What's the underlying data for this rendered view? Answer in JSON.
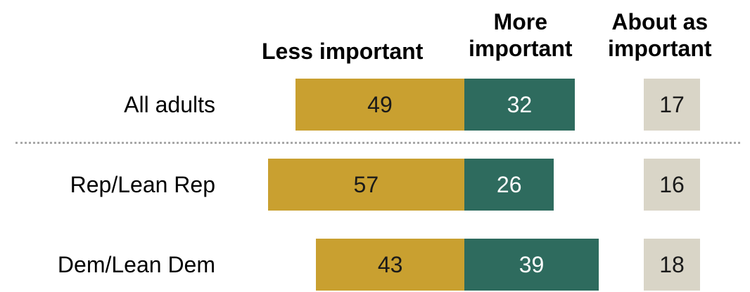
{
  "chart_data": {
    "type": "bar",
    "stacked": "diverging",
    "headers": {
      "less": "Less important",
      "more_line1": "More",
      "more_line2": "important",
      "about_line1": "About as",
      "about_line2": "important"
    },
    "categories": [
      "All adults",
      "Rep/Lean Rep",
      "Dem/Lean Dem"
    ],
    "series": [
      {
        "name": "Less important",
        "values": [
          49,
          57,
          43
        ],
        "color": "#c9a030"
      },
      {
        "name": "More important",
        "values": [
          32,
          26,
          39
        ],
        "color": "#2e6b5e"
      },
      {
        "name": "About as important",
        "values": [
          17,
          16,
          18
        ],
        "color": "#d9d5c7"
      }
    ],
    "value_text_colors": {
      "less": "#1a1a1a",
      "more": "#ffffff",
      "about": "#1a1a1a"
    },
    "separator_after_first_row": true
  }
}
